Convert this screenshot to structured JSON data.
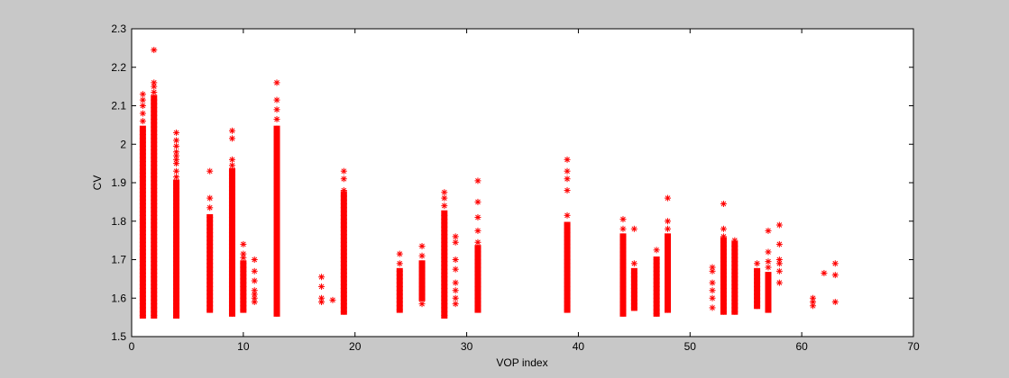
{
  "chart_data": {
    "type": "scatter",
    "title": "",
    "xlabel": "VOP index",
    "ylabel": "CV",
    "xlim": [
      0,
      70
    ],
    "ylim": [
      1.5,
      2.3
    ],
    "xticks": [
      0,
      10,
      20,
      30,
      40,
      50,
      60,
      70
    ],
    "yticks": [
      1.5,
      1.6,
      1.7,
      1.8,
      1.9,
      2,
      2.1,
      2.2,
      2.3
    ],
    "xtick_labels": [
      "0",
      "10",
      "20",
      "30",
      "40",
      "50",
      "60",
      "70"
    ],
    "ytick_labels": [
      "1.5",
      "1.6",
      "1.7",
      "1.8",
      "1.9",
      "2",
      "2.1",
      "2.2",
      "2.3"
    ],
    "grid": false,
    "marker": "*",
    "color": "#ff0000",
    "columns": [
      {
        "x": 1,
        "dense": [
          1.555,
          2.04
        ],
        "points": [
          2.06,
          2.08,
          2.1,
          2.115,
          2.13
        ]
      },
      {
        "x": 2,
        "dense": [
          1.555,
          2.12
        ],
        "points": [
          2.135,
          2.15,
          2.16,
          2.245
        ]
      },
      {
        "x": 4,
        "dense": [
          1.555,
          1.9
        ],
        "points": [
          1.915,
          1.93,
          1.95,
          1.96,
          1.97,
          1.98,
          1.995,
          2.01,
          2.03
        ]
      },
      {
        "x": 7,
        "dense": [
          1.57,
          1.81
        ],
        "points": [
          1.835,
          1.86,
          1.93
        ]
      },
      {
        "x": 9,
        "dense": [
          1.56,
          1.93
        ],
        "points": [
          1.945,
          1.96,
          2.015,
          2.035
        ]
      },
      {
        "x": 10,
        "dense": [
          1.57,
          1.69
        ],
        "points": [
          1.705,
          1.715,
          1.74
        ]
      },
      {
        "x": 11,
        "dense": [],
        "points": [
          1.59,
          1.6,
          1.61,
          1.62,
          1.645,
          1.67,
          1.7
        ]
      },
      {
        "x": 13,
        "dense": [
          1.56,
          2.04
        ],
        "points": [
          2.065,
          2.09,
          2.115,
          2.16
        ]
      },
      {
        "x": 17,
        "dense": [],
        "points": [
          1.59,
          1.6,
          1.63,
          1.655
        ]
      },
      {
        "x": 18,
        "dense": [],
        "points": [
          1.595
        ]
      },
      {
        "x": 19,
        "dense": [
          1.565,
          1.87
        ],
        "points": [
          1.88,
          1.91,
          1.93
        ]
      },
      {
        "x": 24,
        "dense": [
          1.57,
          1.67
        ],
        "points": [
          1.69,
          1.715
        ]
      },
      {
        "x": 26,
        "dense": [
          1.6,
          1.69
        ],
        "points": [
          1.585,
          1.71,
          1.735
        ]
      },
      {
        "x": 28,
        "dense": [
          1.555,
          1.82
        ],
        "points": [
          1.84,
          1.86,
          1.875
        ]
      },
      {
        "x": 29,
        "dense": [],
        "points": [
          1.585,
          1.6,
          1.62,
          1.64,
          1.675,
          1.7,
          1.745,
          1.76
        ]
      },
      {
        "x": 31,
        "dense": [
          1.57,
          1.73
        ],
        "points": [
          1.745,
          1.775,
          1.81,
          1.85,
          1.905
        ]
      },
      {
        "x": 39,
        "dense": [
          1.57,
          1.79
        ],
        "points": [
          1.815,
          1.88,
          1.91,
          1.93,
          1.96
        ]
      },
      {
        "x": 44,
        "dense": [
          1.56,
          1.76
        ],
        "points": [
          1.78,
          1.805
        ]
      },
      {
        "x": 45,
        "dense": [
          1.575,
          1.67
        ],
        "points": [
          1.69,
          1.78
        ]
      },
      {
        "x": 47,
        "dense": [
          1.56,
          1.7
        ],
        "points": [
          1.725
        ]
      },
      {
        "x": 48,
        "dense": [
          1.57,
          1.76
        ],
        "points": [
          1.78,
          1.8,
          1.86
        ]
      },
      {
        "x": 52,
        "dense": [],
        "points": [
          1.575,
          1.6,
          1.62,
          1.64,
          1.67,
          1.68
        ]
      },
      {
        "x": 53,
        "dense": [
          1.565,
          1.75
        ],
        "points": [
          1.76,
          1.78,
          1.845
        ]
      },
      {
        "x": 54,
        "dense": [
          1.565,
          1.74
        ],
        "points": [
          1.75
        ]
      },
      {
        "x": 56,
        "dense": [
          1.58,
          1.67
        ],
        "points": [
          1.69
        ]
      },
      {
        "x": 57,
        "dense": [
          1.57,
          1.66
        ],
        "points": [
          1.68,
          1.695,
          1.72,
          1.775
        ]
      },
      {
        "x": 58,
        "dense": [],
        "points": [
          1.64,
          1.67,
          1.69,
          1.7,
          1.74,
          1.79
        ]
      },
      {
        "x": 61,
        "dense": [],
        "points": [
          1.58,
          1.59,
          1.6
        ]
      },
      {
        "x": 62,
        "dense": [],
        "points": [
          1.665
        ]
      },
      {
        "x": 63,
        "dense": [],
        "points": [
          1.59,
          1.66,
          1.69
        ]
      }
    ]
  }
}
